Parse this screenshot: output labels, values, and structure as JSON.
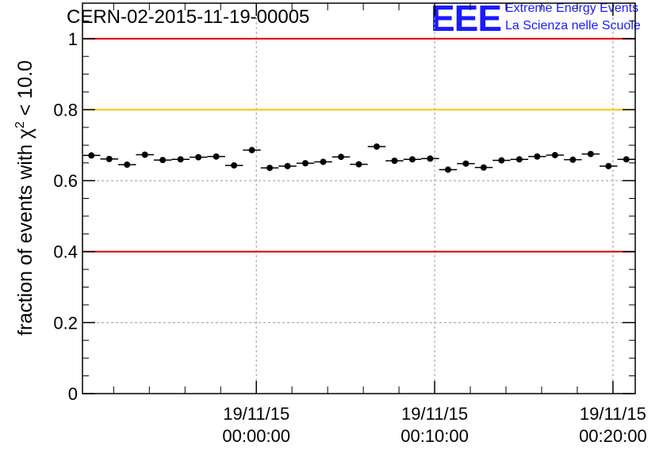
{
  "header": {
    "run_title": "CERN-02-2015-11-19-00005",
    "logo_text": "EEE",
    "logo_line1": "Extreme Energy Events",
    "logo_line2": "La Scienza nelle Scuole"
  },
  "colors": {
    "ref_red": "#e00000",
    "ref_yellow": "#ffc000",
    "logo_blue": "#1a1aff",
    "grid": "#9a9a9a"
  },
  "chart_data": {
    "type": "scatter",
    "title": "CERN-02-2015-11-19-00005",
    "ylabel": "fraction of events with χ² < 10.0",
    "ylim": [
      0,
      1.1
    ],
    "yticks": [
      0,
      0.2,
      0.4,
      0.6,
      0.8,
      1
    ],
    "ytick_labels": [
      "0",
      "0.2",
      "0.4",
      "0.6",
      "0.8",
      "1"
    ],
    "xticks": [
      {
        "date": "19/11/15",
        "time": "00:00:00",
        "minutes": 0
      },
      {
        "date": "19/11/15",
        "time": "00:10:00",
        "minutes": 10
      },
      {
        "date": "19/11/15",
        "time": "00:20:00",
        "minutes": 20
      }
    ],
    "xlim_minutes": [
      -9.75,
      21.25
    ],
    "x_bin_width_minutes": 1,
    "reference_lines": [
      {
        "y": 1.0,
        "color": "#e00000"
      },
      {
        "y": 0.8,
        "color": "#ffc000"
      },
      {
        "y": 0.4,
        "color": "#e00000"
      }
    ],
    "grid": true,
    "series": [
      {
        "x_minutes": [
          -9.25,
          -8.25,
          -7.25,
          -6.25,
          -5.25,
          -4.25,
          -3.25,
          -2.25,
          -1.25,
          -0.25,
          0.75,
          1.75,
          2.75,
          3.75,
          4.75,
          5.75,
          6.75,
          7.75,
          8.75,
          9.75,
          10.75,
          11.75,
          12.75,
          13.75,
          14.75,
          15.75,
          16.75,
          17.75,
          18.75,
          19.75,
          20.75
        ],
        "values": [
          0.671,
          0.661,
          0.645,
          0.673,
          0.658,
          0.66,
          0.666,
          0.668,
          0.643,
          0.686,
          0.636,
          0.641,
          0.649,
          0.653,
          0.667,
          0.646,
          0.696,
          0.656,
          0.66,
          0.662,
          0.631,
          0.648,
          0.637,
          0.657,
          0.66,
          0.668,
          0.672,
          0.659,
          0.675,
          0.641,
          0.66
        ],
        "errors": [
          0.008,
          0.008,
          0.008,
          0.008,
          0.008,
          0.008,
          0.008,
          0.008,
          0.008,
          0.008,
          0.008,
          0.008,
          0.008,
          0.008,
          0.008,
          0.008,
          0.008,
          0.008,
          0.008,
          0.008,
          0.008,
          0.008,
          0.008,
          0.008,
          0.008,
          0.008,
          0.008,
          0.008,
          0.008,
          0.008,
          0.008
        ]
      }
    ]
  }
}
